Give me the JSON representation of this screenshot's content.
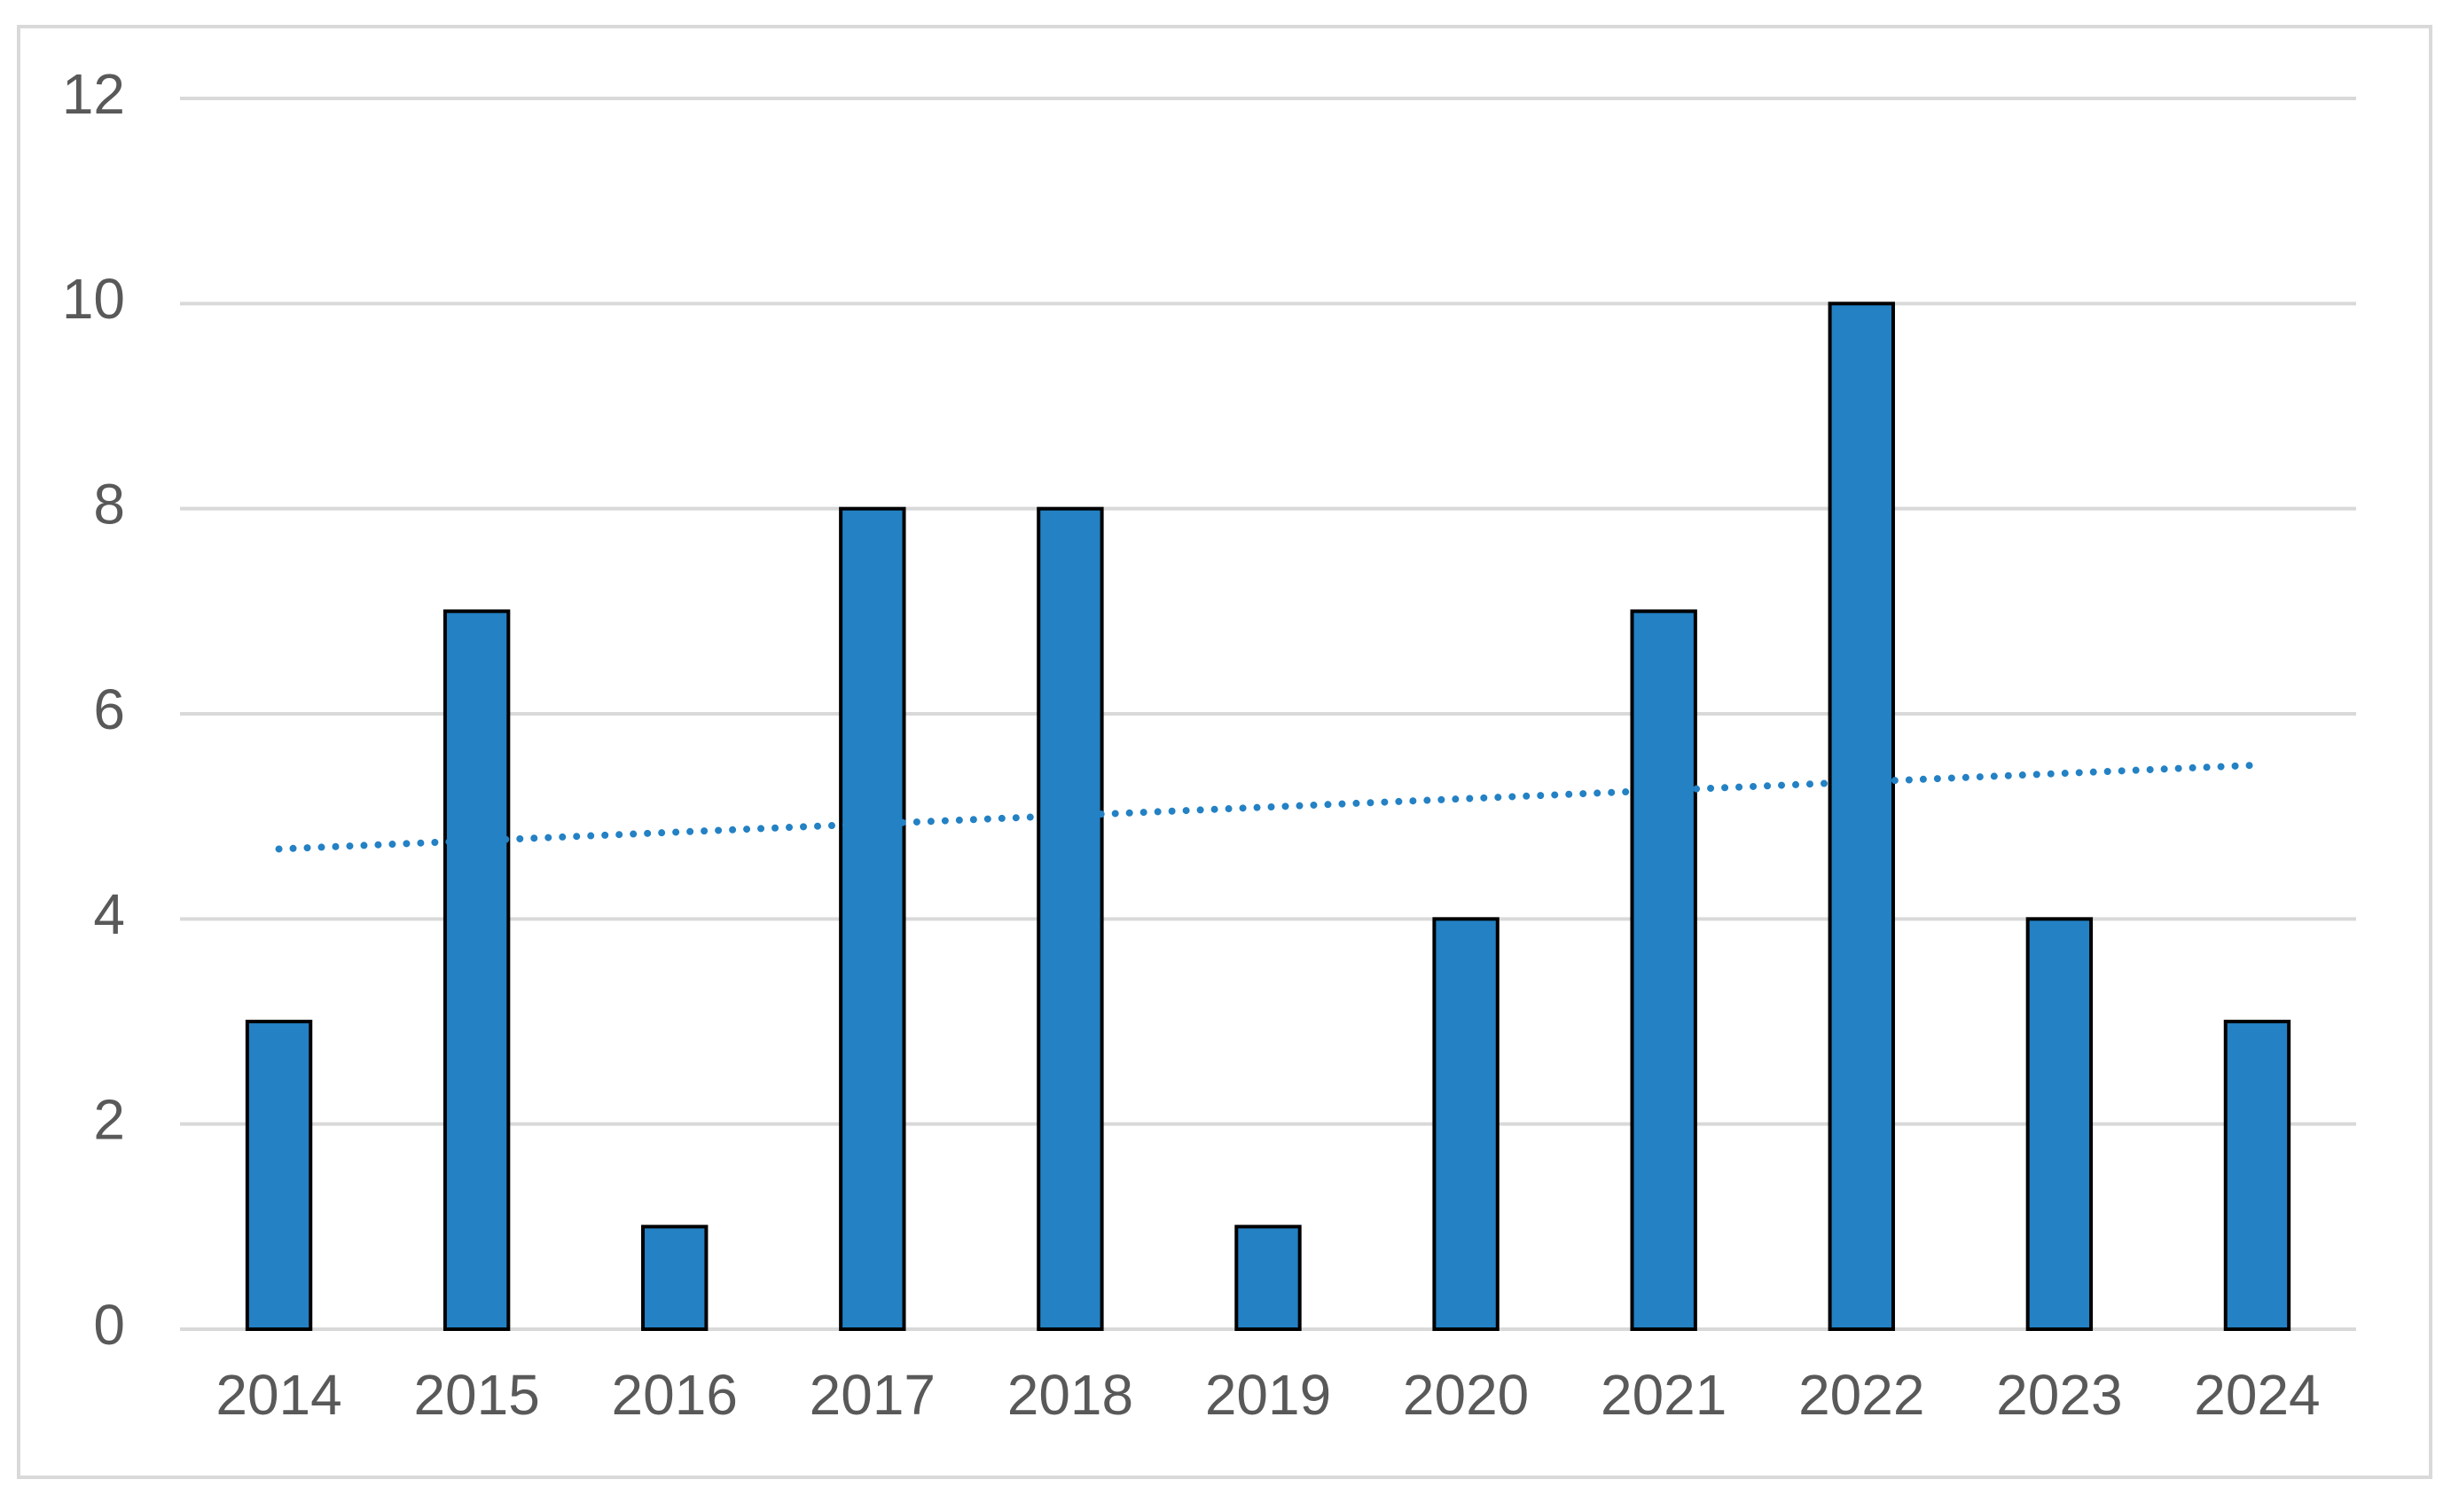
{
  "chart_data": {
    "type": "bar",
    "categories": [
      "2014",
      "2015",
      "2016",
      "2017",
      "2018",
      "2019",
      "2020",
      "2021",
      "2022",
      "2023",
      "2024"
    ],
    "values": [
      3,
      7,
      1,
      8,
      8,
      1,
      4,
      7,
      10,
      4,
      3
    ],
    "color": "#2381c4",
    "ylim": [
      0,
      12
    ],
    "yticks": [
      0,
      2,
      4,
      6,
      8,
      10,
      12
    ],
    "grid": true,
    "trendline": "linear",
    "trendline_color": "#2381c4"
  }
}
